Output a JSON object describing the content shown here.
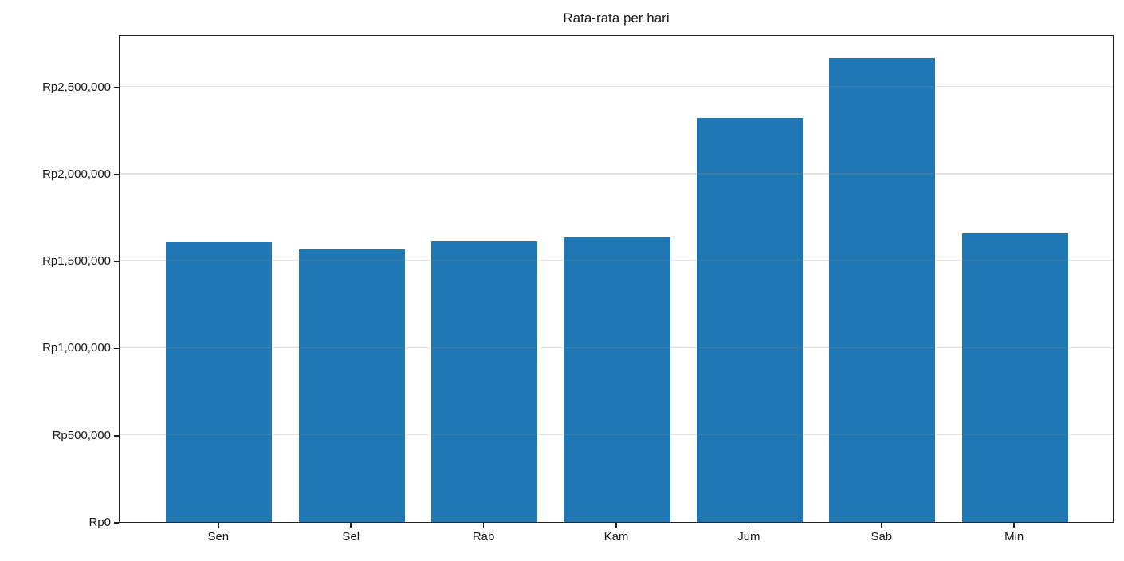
{
  "chart_data": {
    "type": "bar",
    "title": "Rata-rata per hari",
    "categories": [
      "Sen",
      "Sel",
      "Rab",
      "Kam",
      "Jum",
      "Sab",
      "Min"
    ],
    "values": [
      1605000,
      1565000,
      1610000,
      1635000,
      2320000,
      2665000,
      1655000
    ],
    "xlabel": "",
    "ylabel": "",
    "y_ticks": [
      {
        "value": 0,
        "label": "Rp0"
      },
      {
        "value": 500000,
        "label": "Rp500,000"
      },
      {
        "value": 1000000,
        "label": "Rp1,000,000"
      },
      {
        "value": 1500000,
        "label": "Rp1,500,000"
      },
      {
        "value": 2000000,
        "label": "Rp2,000,000"
      },
      {
        "value": 2500000,
        "label": "Rp2,500,000"
      }
    ],
    "ylim": [
      0,
      2800000
    ],
    "grid": "horizontal-above-bars",
    "legend_position": "none",
    "bar_color": "#1f77b4",
    "axis_color": "#222222",
    "grid_color": "#e8e8e8",
    "background_color": "#ffffff"
  }
}
